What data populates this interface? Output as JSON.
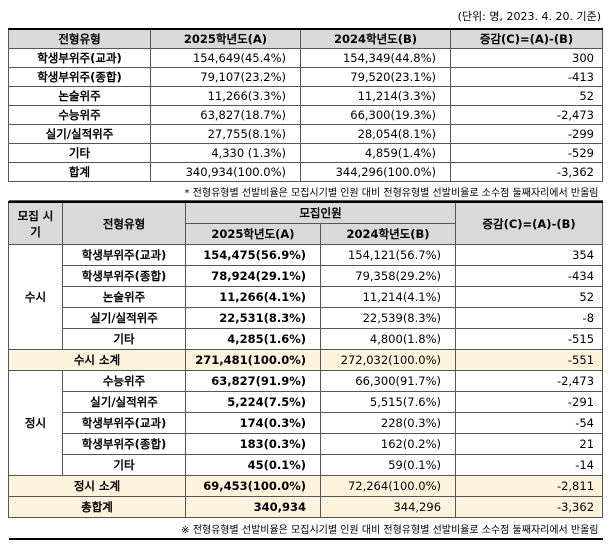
{
  "top_note": "(단위: 명, 2023. 4. 20. 기준)",
  "table1": {
    "header": [
      "전형유형",
      "2025학년도(A)",
      "2024학년도(B)",
      "증감(C)=(A)-(B)"
    ],
    "rows": [
      [
        "학생부위주(교과)",
        "154,649(45.4%)",
        "154,349(44.8%)",
        "300"
      ],
      [
        "학생부위주(종합)",
        "79,107(23.2%)",
        "79,520(23.1%)",
        "-413"
      ],
      [
        "논술위주",
        "11,266(3.3%)",
        "11,214(3.3%)",
        "52"
      ],
      [
        "수능위주",
        "63,827(18.7%)",
        "66,300(19.3%)",
        "-2,473"
      ],
      [
        "실기/실적위주",
        "27,755(8.1%)",
        "28,054(8.1%)",
        "-299"
      ],
      [
        "기타",
        "4,330 (1.3%)",
        "4,859(1.4%)",
        "-529"
      ],
      [
        "합계",
        "340,934(100.0%)",
        "344,296(100.0%)",
        "-3,362"
      ]
    ],
    "note": "* 전형유형별 선발비율은 모집시기별 인원 대비 전형유형별 선발비율로 소수점 둘째자리에서 반올림"
  },
  "table2": {
    "header": {
      "period": "모집 시기",
      "type": "전형유형",
      "group": "모집인원",
      "a": "2025학년도(A)",
      "b": "2024학년도(B)",
      "diff": "증감(C)=(A)-(B)"
    },
    "groups": [
      {
        "period": "수시",
        "rows": [
          [
            "학생부위주(교과)",
            "154,475(56.9%)",
            "154,121(56.7%)",
            "354"
          ],
          [
            "학생부위주(종합)",
            "78,924(29.1%)",
            "79,358(29.2%)",
            "-434"
          ],
          [
            "논술위주",
            "11,266(4.1%)",
            "11,214(4.1%)",
            "52"
          ],
          [
            "실기/실적위주",
            "22,531(8.3%)",
            "22,539(8.3%)",
            "-8"
          ],
          [
            "기타",
            "4,285(1.6%)",
            "4,800(1.8%)",
            "-515"
          ]
        ],
        "subtotal": [
          "수시 소계",
          "271,481(100.0%)",
          "272,032(100.0%)",
          "-551"
        ]
      },
      {
        "period": "정시",
        "rows": [
          [
            "수능위주",
            "63,827(91.9%)",
            "66,300(91.7%)",
            "-2,473"
          ],
          [
            "실기/실적위주",
            "5,224(7.5%)",
            "5,515(7.6%)",
            "-291"
          ],
          [
            "학생부위주(교과)",
            "174(0.3%)",
            "228(0.3%)",
            "-54"
          ],
          [
            "학생부위주(종합)",
            "183(0.3%)",
            "162(0.2%)",
            "21"
          ],
          [
            "기타",
            "45(0.1%)",
            "59(0.1%)",
            "-14"
          ]
        ],
        "subtotal": [
          "정시 소계",
          "69,453(100.0%)",
          "72,264(100.0%)",
          "-2,811"
        ]
      }
    ],
    "total": [
      "총합계",
      "340,934",
      "344,296",
      "-3,362"
    ],
    "note": "※ 전형유형별 선발비율은 모집시기별 인원 대비 전형유형별 선발비율로 소수점 둘째자리에서 반올림"
  }
}
